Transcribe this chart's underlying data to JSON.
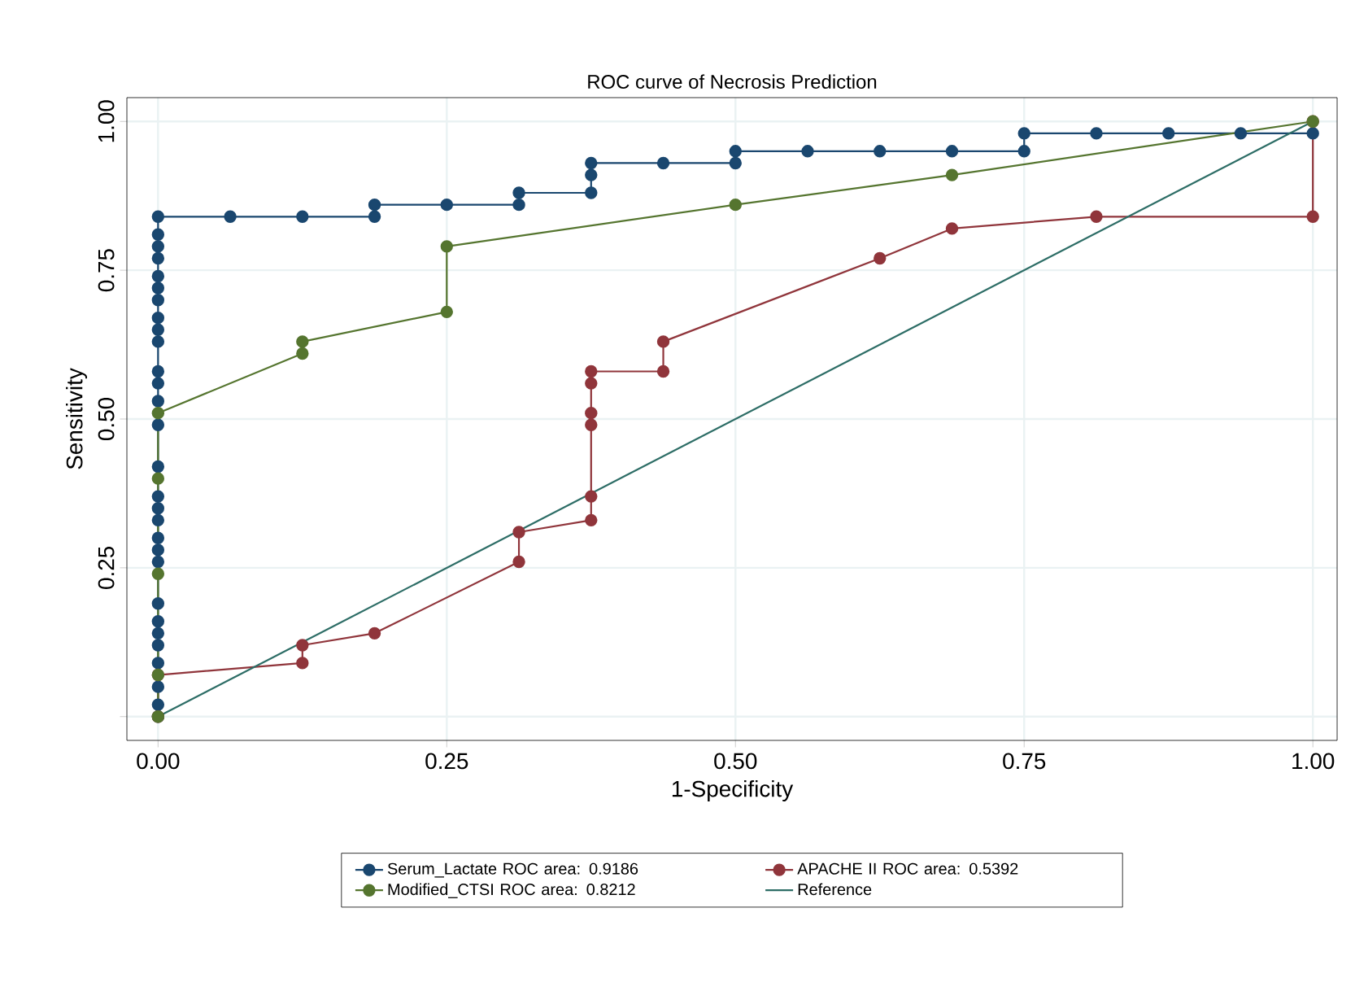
{
  "chart_data": {
    "type": "line",
    "title": "ROC curve of Necrosis Prediction",
    "xlabel": "1-Specificity",
    "ylabel": "Sensitivity",
    "xlim": [
      -0.027,
      1.021
    ],
    "ylim": [
      -0.04,
      1.04
    ],
    "xticks": [
      {
        "value": 0,
        "label": "0.00"
      },
      {
        "value": 0.25,
        "label": "0.25"
      },
      {
        "value": 0.5,
        "label": "0.50"
      },
      {
        "value": 0.75,
        "label": "0.75"
      },
      {
        "value": 1,
        "label": "1.00"
      }
    ],
    "yticks": [
      {
        "value": 0,
        "label": null
      },
      {
        "value": 0.25,
        "label": "0.25"
      },
      {
        "value": 0.5,
        "label": "0.50"
      },
      {
        "value": 0.75,
        "label": "0.75"
      },
      {
        "value": 1,
        "label": "1.00"
      }
    ],
    "grid": true,
    "legend": "bottom",
    "series": [
      {
        "name": "Serum_Lactate ROC area: 0.9186",
        "color": "#1a476f",
        "marker": "circle",
        "x": [
          0,
          0,
          0,
          0,
          0,
          0,
          0,
          0,
          0,
          0,
          0,
          0,
          0,
          0,
          0,
          0,
          0,
          0,
          0,
          0,
          0,
          0,
          0,
          0,
          0,
          0,
          0,
          0,
          0,
          0.0625,
          0.125,
          0.1875,
          0.1875,
          0.25,
          0.3125,
          0.3125,
          0.375,
          0.375,
          0.375,
          0.4375,
          0.5,
          0.5,
          0.5625,
          0.625,
          0.6875,
          0.75,
          0.75,
          0.8125,
          0.875,
          0.9375,
          1
        ],
        "values": [
          0,
          0.02,
          0.05,
          0.09,
          0.12,
          0.14,
          0.16,
          0.19,
          0.26,
          0.28,
          0.3,
          0.33,
          0.35,
          0.37,
          0.42,
          0.49,
          0.53,
          0.56,
          0.58,
          0.63,
          0.65,
          0.67,
          0.7,
          0.72,
          0.74,
          0.77,
          0.79,
          0.81,
          0.84,
          0.84,
          0.84,
          0.84,
          0.86,
          0.86,
          0.86,
          0.88,
          0.88,
          0.91,
          0.93,
          0.93,
          0.93,
          0.95,
          0.95,
          0.95,
          0.95,
          0.95,
          0.98,
          0.98,
          0.98,
          0.98,
          0.98
        ]
      },
      {
        "name": "APACHE II ROC area: 0.5392",
        "color": "#90353b",
        "marker": "circle",
        "x": [
          0,
          0,
          0.125,
          0.125,
          0.1875,
          0.3125,
          0.3125,
          0.375,
          0.375,
          0.375,
          0.375,
          0.375,
          0.375,
          0.4375,
          0.4375,
          0.625,
          0.6875,
          0.8125,
          1,
          1
        ],
        "values": [
          0,
          0.07,
          0.09,
          0.12,
          0.14,
          0.26,
          0.31,
          0.33,
          0.37,
          0.49,
          0.51,
          0.56,
          0.58,
          0.58,
          0.63,
          0.77,
          0.82,
          0.84,
          0.84,
          1
        ]
      },
      {
        "name": "Modified_CTSI ROC area: 0.8212",
        "color": "#55752f",
        "marker": "circle",
        "x": [
          0,
          0,
          0,
          0,
          0,
          0.125,
          0.125,
          0.25,
          0.25,
          0.5,
          0.6875,
          1
        ],
        "values": [
          0,
          0.07,
          0.24,
          0.4,
          0.51,
          0.61,
          0.63,
          0.68,
          0.79,
          0.86,
          0.91,
          1
        ]
      },
      {
        "name": "Reference",
        "color": "#2d6d66",
        "marker": "none",
        "x": [
          0,
          1
        ],
        "values": [
          0,
          1
        ]
      }
    ]
  }
}
